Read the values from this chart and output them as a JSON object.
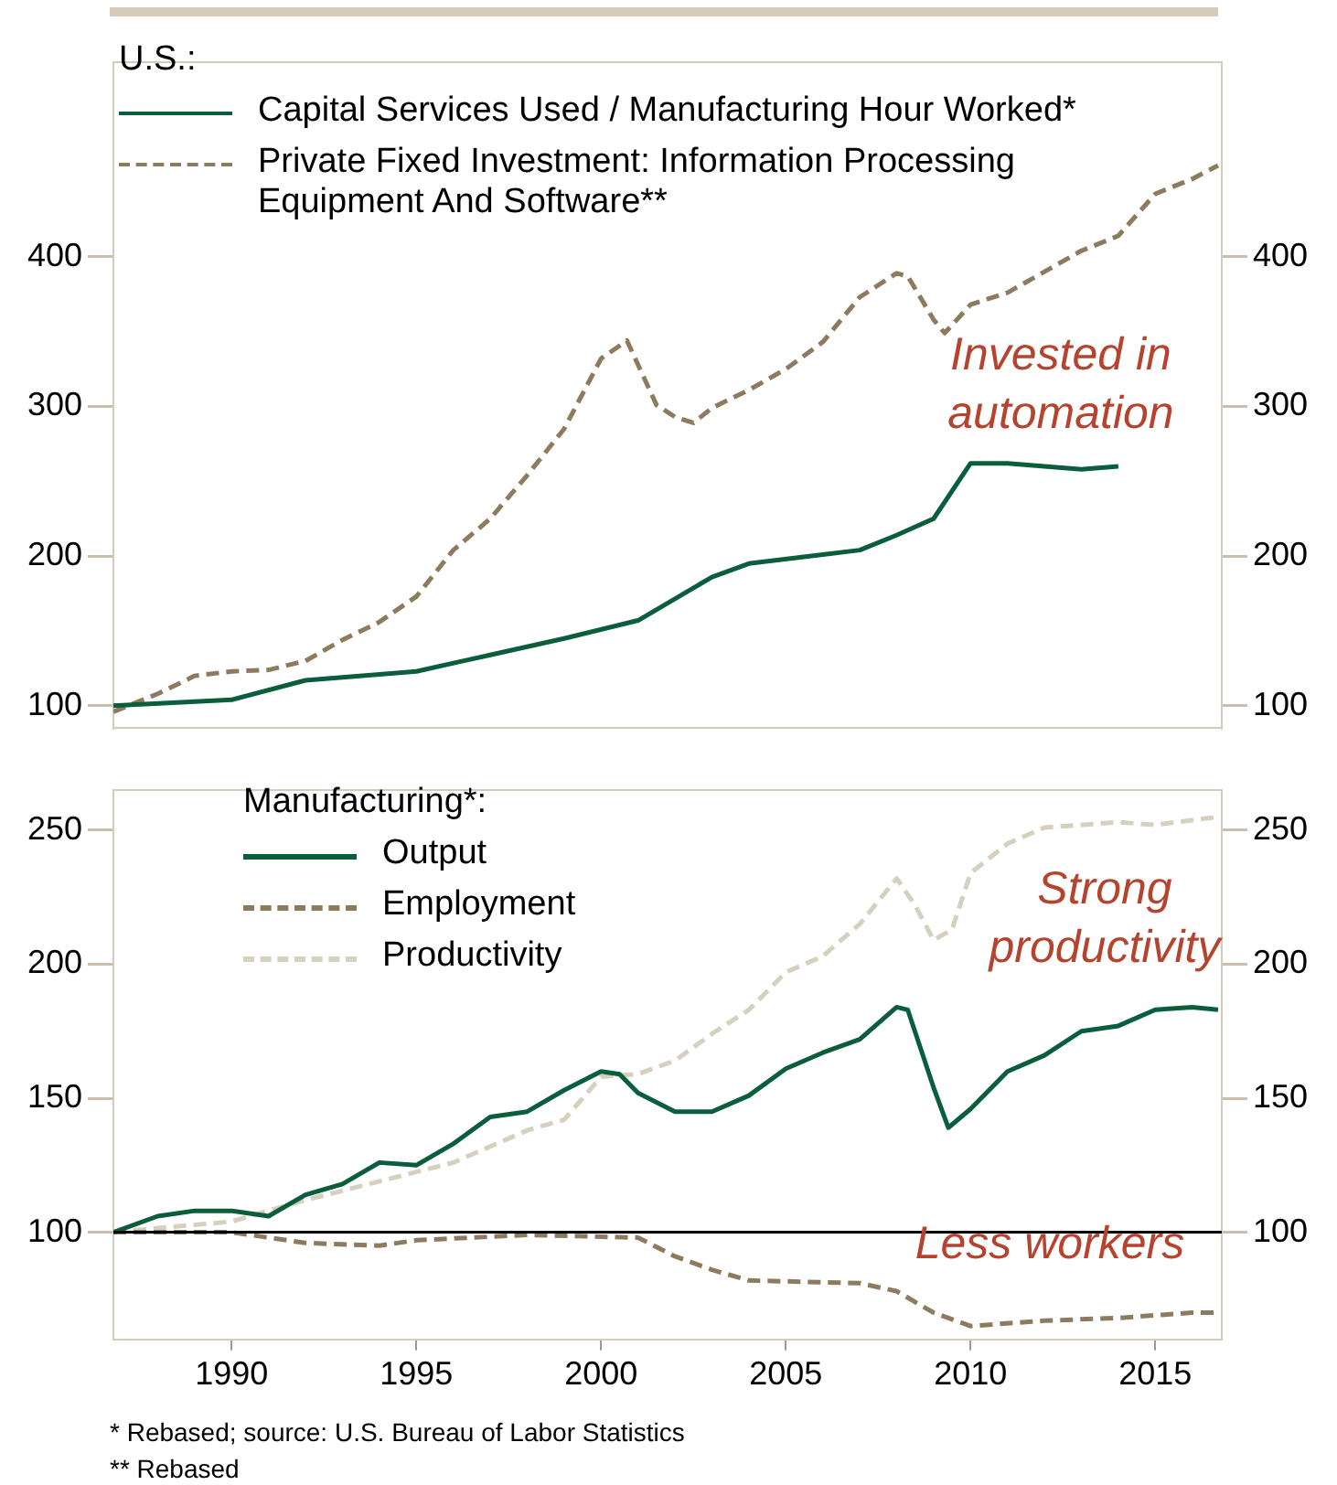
{
  "chart_data": [
    {
      "type": "line",
      "legend_title": "U.S.:",
      "legend": "top left",
      "grid": false,
      "marker": "none",
      "tick_labels": "y",
      "xlim": [
        1986.8,
        2016.8
      ],
      "xticks": [
        1990,
        1995,
        2000,
        2005,
        2010,
        2015
      ],
      "ylim": [
        85,
        530
      ],
      "yticks": [
        100,
        200,
        300,
        400
      ],
      "y2lim": [
        85,
        530
      ],
      "y2ticks": [
        100,
        200,
        300,
        400
      ],
      "annotations": [
        "Invested in automation"
      ],
      "series": [
        {
          "name": "Capital Services Used / Manufacturing Hour Worked*",
          "color": "#0b5e3b",
          "line_style": "solid",
          "x": [
            1986.8,
            1990,
            1992,
            1995,
            1997,
            1999,
            2001,
            2003,
            2004,
            2006,
            2007,
            2008,
            2009,
            2010,
            2011,
            2012,
            2013,
            2014
          ],
          "values": [
            100,
            104,
            117,
            123,
            134,
            145,
            157,
            186,
            195,
            201,
            204,
            214,
            225,
            262,
            262,
            260,
            258,
            260
          ]
        },
        {
          "name": "Private Fixed Investment: Information Processing Equipment And Software**",
          "color": "#8c7b5e",
          "line_style": "dashed",
          "x": [
            1986.8,
            1988,
            1989,
            1990,
            1991,
            1992,
            1993,
            1994,
            1995,
            1996,
            1997,
            1998,
            1999,
            2000,
            2000.7,
            2001.5,
            2002,
            2002.5,
            2003,
            2004,
            2005,
            2006,
            2007,
            2008,
            2008.3,
            2009,
            2009.3,
            2010,
            2011,
            2012,
            2013,
            2014,
            2015,
            2016,
            2016.7
          ],
          "values": [
            96,
            108,
            120,
            123,
            124,
            130,
            144,
            156,
            173,
            204,
            225,
            254,
            285,
            332,
            344,
            301,
            293,
            289,
            299,
            311,
            325,
            343,
            373,
            389,
            387,
            358,
            349,
            368,
            376,
            390,
            404,
            414,
            442,
            452,
            461
          ]
        }
      ]
    },
    {
      "type": "line",
      "legend_title": "Manufacturing*:",
      "legend": "top left",
      "grid": false,
      "marker": "none",
      "xlim": [
        1986.8,
        2016.8
      ],
      "xticks": [
        1990,
        1995,
        2000,
        2005,
        2010,
        2015
      ],
      "ylim": [
        60,
        265
      ],
      "yticks": [
        100,
        150,
        200,
        250
      ],
      "y2lim": [
        60,
        265
      ],
      "y2ticks": [
        100,
        150,
        200,
        250
      ],
      "ref_lines": [
        {
          "axis": "y",
          "value": 100,
          "color": "#000000"
        }
      ],
      "annotations": [
        "Strong productivity",
        "Less workers",
        "* Rebased; source: U.S. Bureau of Labor Statistics",
        "** Rebased"
      ],
      "series": [
        {
          "name": "Output",
          "color": "#0b5e3b",
          "line_style": "solid",
          "x": [
            1986.8,
            1988,
            1989,
            1990,
            1991,
            1992,
            1993,
            1994,
            1995,
            1996,
            1997,
            1998,
            1999,
            2000,
            2000.5,
            2001,
            2002,
            2003,
            2004,
            2005,
            2006,
            2007,
            2008,
            2008.3,
            2009,
            2009.4,
            2010,
            2011,
            2012,
            2013,
            2014,
            2015,
            2016,
            2016.7
          ],
          "values": [
            100,
            106,
            108,
            108,
            106,
            114,
            118,
            126,
            125,
            133,
            143,
            145,
            153,
            160,
            159,
            152,
            145,
            145,
            151,
            161,
            167,
            172,
            184,
            183,
            154,
            139,
            146,
            160,
            166,
            175,
            177,
            183,
            184,
            183
          ]
        },
        {
          "name": "Employment",
          "color": "#8c7b5e",
          "line_style": "dashed",
          "x": [
            1986.8,
            1990,
            1991,
            1992,
            1994,
            1995,
            1998,
            2001,
            2002,
            2003,
            2004,
            2007,
            2008,
            2009,
            2010,
            2012,
            2014,
            2016,
            2016.7
          ],
          "values": [
            100,
            100,
            98,
            96,
            95,
            97,
            99,
            98,
            91,
            86,
            82,
            81,
            78,
            70,
            65,
            67,
            68,
            70,
            70
          ]
        },
        {
          "name": "Productivity",
          "color": "#d6d0bf",
          "line_style": "dashed",
          "x": [
            1986.8,
            1990,
            1992,
            1994,
            1996,
            1998,
            1999,
            2000,
            2001,
            2002,
            2003,
            2004,
            2005,
            2006,
            2007,
            2008,
            2008.5,
            2009,
            2009.5,
            2010,
            2011,
            2012,
            2014,
            2015,
            2016.7
          ],
          "values": [
            100,
            104,
            112,
            119,
            126,
            138,
            142,
            158,
            159,
            164,
            174,
            183,
            197,
            203,
            215,
            232,
            222,
            209,
            213,
            234,
            245,
            251,
            253,
            252,
            255
          ]
        }
      ]
    }
  ]
}
